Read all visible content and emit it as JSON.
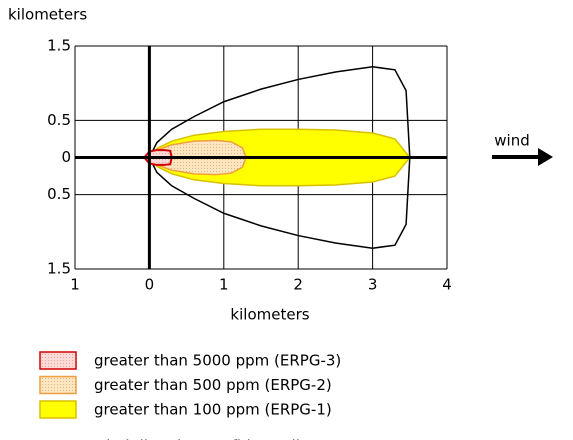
{
  "chart_data": {
    "type": "threat-zone",
    "y_label": "kilometers",
    "x_label": "kilometers",
    "annotation": "wind",
    "xlim": [
      -1,
      4
    ],
    "ylim": [
      -1.5,
      1.5
    ],
    "xticks": [
      {
        "value": -1,
        "label": "1"
      },
      0,
      1,
      2,
      3,
      4
    ],
    "yticks": [
      1.5,
      0.5,
      0,
      {
        "value": -0.5,
        "label": "0.5"
      },
      {
        "value": -1.5,
        "label": "1.5"
      }
    ],
    "grid": true,
    "series": [
      {
        "name": "greater than 5000 ppm (ERPG-3)",
        "color": "#d00000",
        "fill": "#ffd8d8",
        "x": [
          -0.07,
          0,
          0.1,
          0.2,
          0.28,
          0.3
        ],
        "values": [
          0,
          0.08,
          0.1,
          0.1,
          0.09,
          0
        ]
      },
      {
        "name": "greater than 500 ppm (ERPG-2)",
        "color": "#f0a040",
        "fill": "#fde6bf",
        "x": [
          0,
          0.1,
          0.3,
          0.6,
          0.9,
          1.1,
          1.25,
          1.3
        ],
        "values": [
          0,
          0.1,
          0.17,
          0.22,
          0.23,
          0.21,
          0.13,
          0
        ]
      },
      {
        "name": "greater than 100 ppm (ERPG-1)",
        "color": "#d8c000",
        "fill": "#ffff00",
        "x": [
          0,
          0.1,
          0.3,
          0.6,
          1,
          1.5,
          2,
          2.5,
          3,
          3.3,
          3.5
        ],
        "values": [
          0,
          0.12,
          0.22,
          0.3,
          0.35,
          0.38,
          0.38,
          0.37,
          0.33,
          0.25,
          0
        ]
      },
      {
        "name": "wind direction confidence lines",
        "color": "#000000",
        "fill": "none",
        "x": [
          0,
          0.1,
          0.3,
          0.6,
          1,
          1.5,
          2,
          2.5,
          3,
          3.3,
          3.45,
          3.5
        ],
        "values": [
          0,
          0.2,
          0.38,
          0.55,
          0.75,
          0.92,
          1.05,
          1.15,
          1.22,
          1.18,
          0.9,
          0
        ]
      }
    ]
  }
}
